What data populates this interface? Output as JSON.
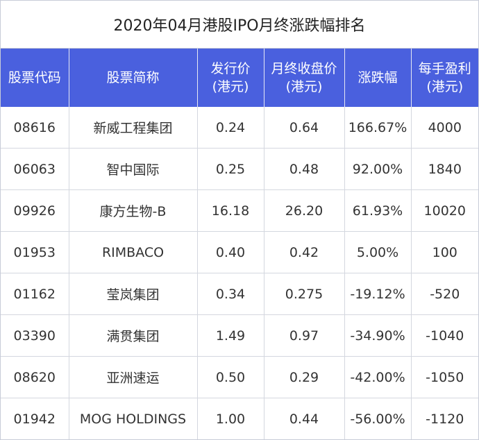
{
  "title": "2020年04月港股IPO月终涨跌幅排名",
  "headers": [
    "股票代码",
    "股票简称",
    "发行价\n(港元)",
    "月终收盘价\n(港元)",
    "涨跌幅",
    "每手盈利\n(港元)"
  ],
  "rows": [
    [
      "08616",
      "新威工程集团",
      "0.24",
      "0.64",
      "166.67%",
      "4000"
    ],
    [
      "06063",
      "智中国际",
      "0.25",
      "0.48",
      "92.00%",
      "1840"
    ],
    [
      "09926",
      "康方生物-B",
      "16.18",
      "26.20",
      "61.93%",
      "10020"
    ],
    [
      "01953",
      "RIMBACO",
      "0.40",
      "0.42",
      "5.00%",
      "100"
    ],
    [
      "01162",
      "莹岚集团",
      "0.34",
      "0.275",
      "-19.12%",
      "-520"
    ],
    [
      "03390",
      "满贯集团",
      "1.49",
      "0.97",
      "-34.90%",
      "-1040"
    ],
    [
      "08620",
      "亚洲速运",
      "0.50",
      "0.29",
      "-42.00%",
      "-1050"
    ],
    [
      "01942",
      "MOG HOLDINGS",
      "1.00",
      "0.44",
      "-56.00%",
      "-1120"
    ]
  ]
}
